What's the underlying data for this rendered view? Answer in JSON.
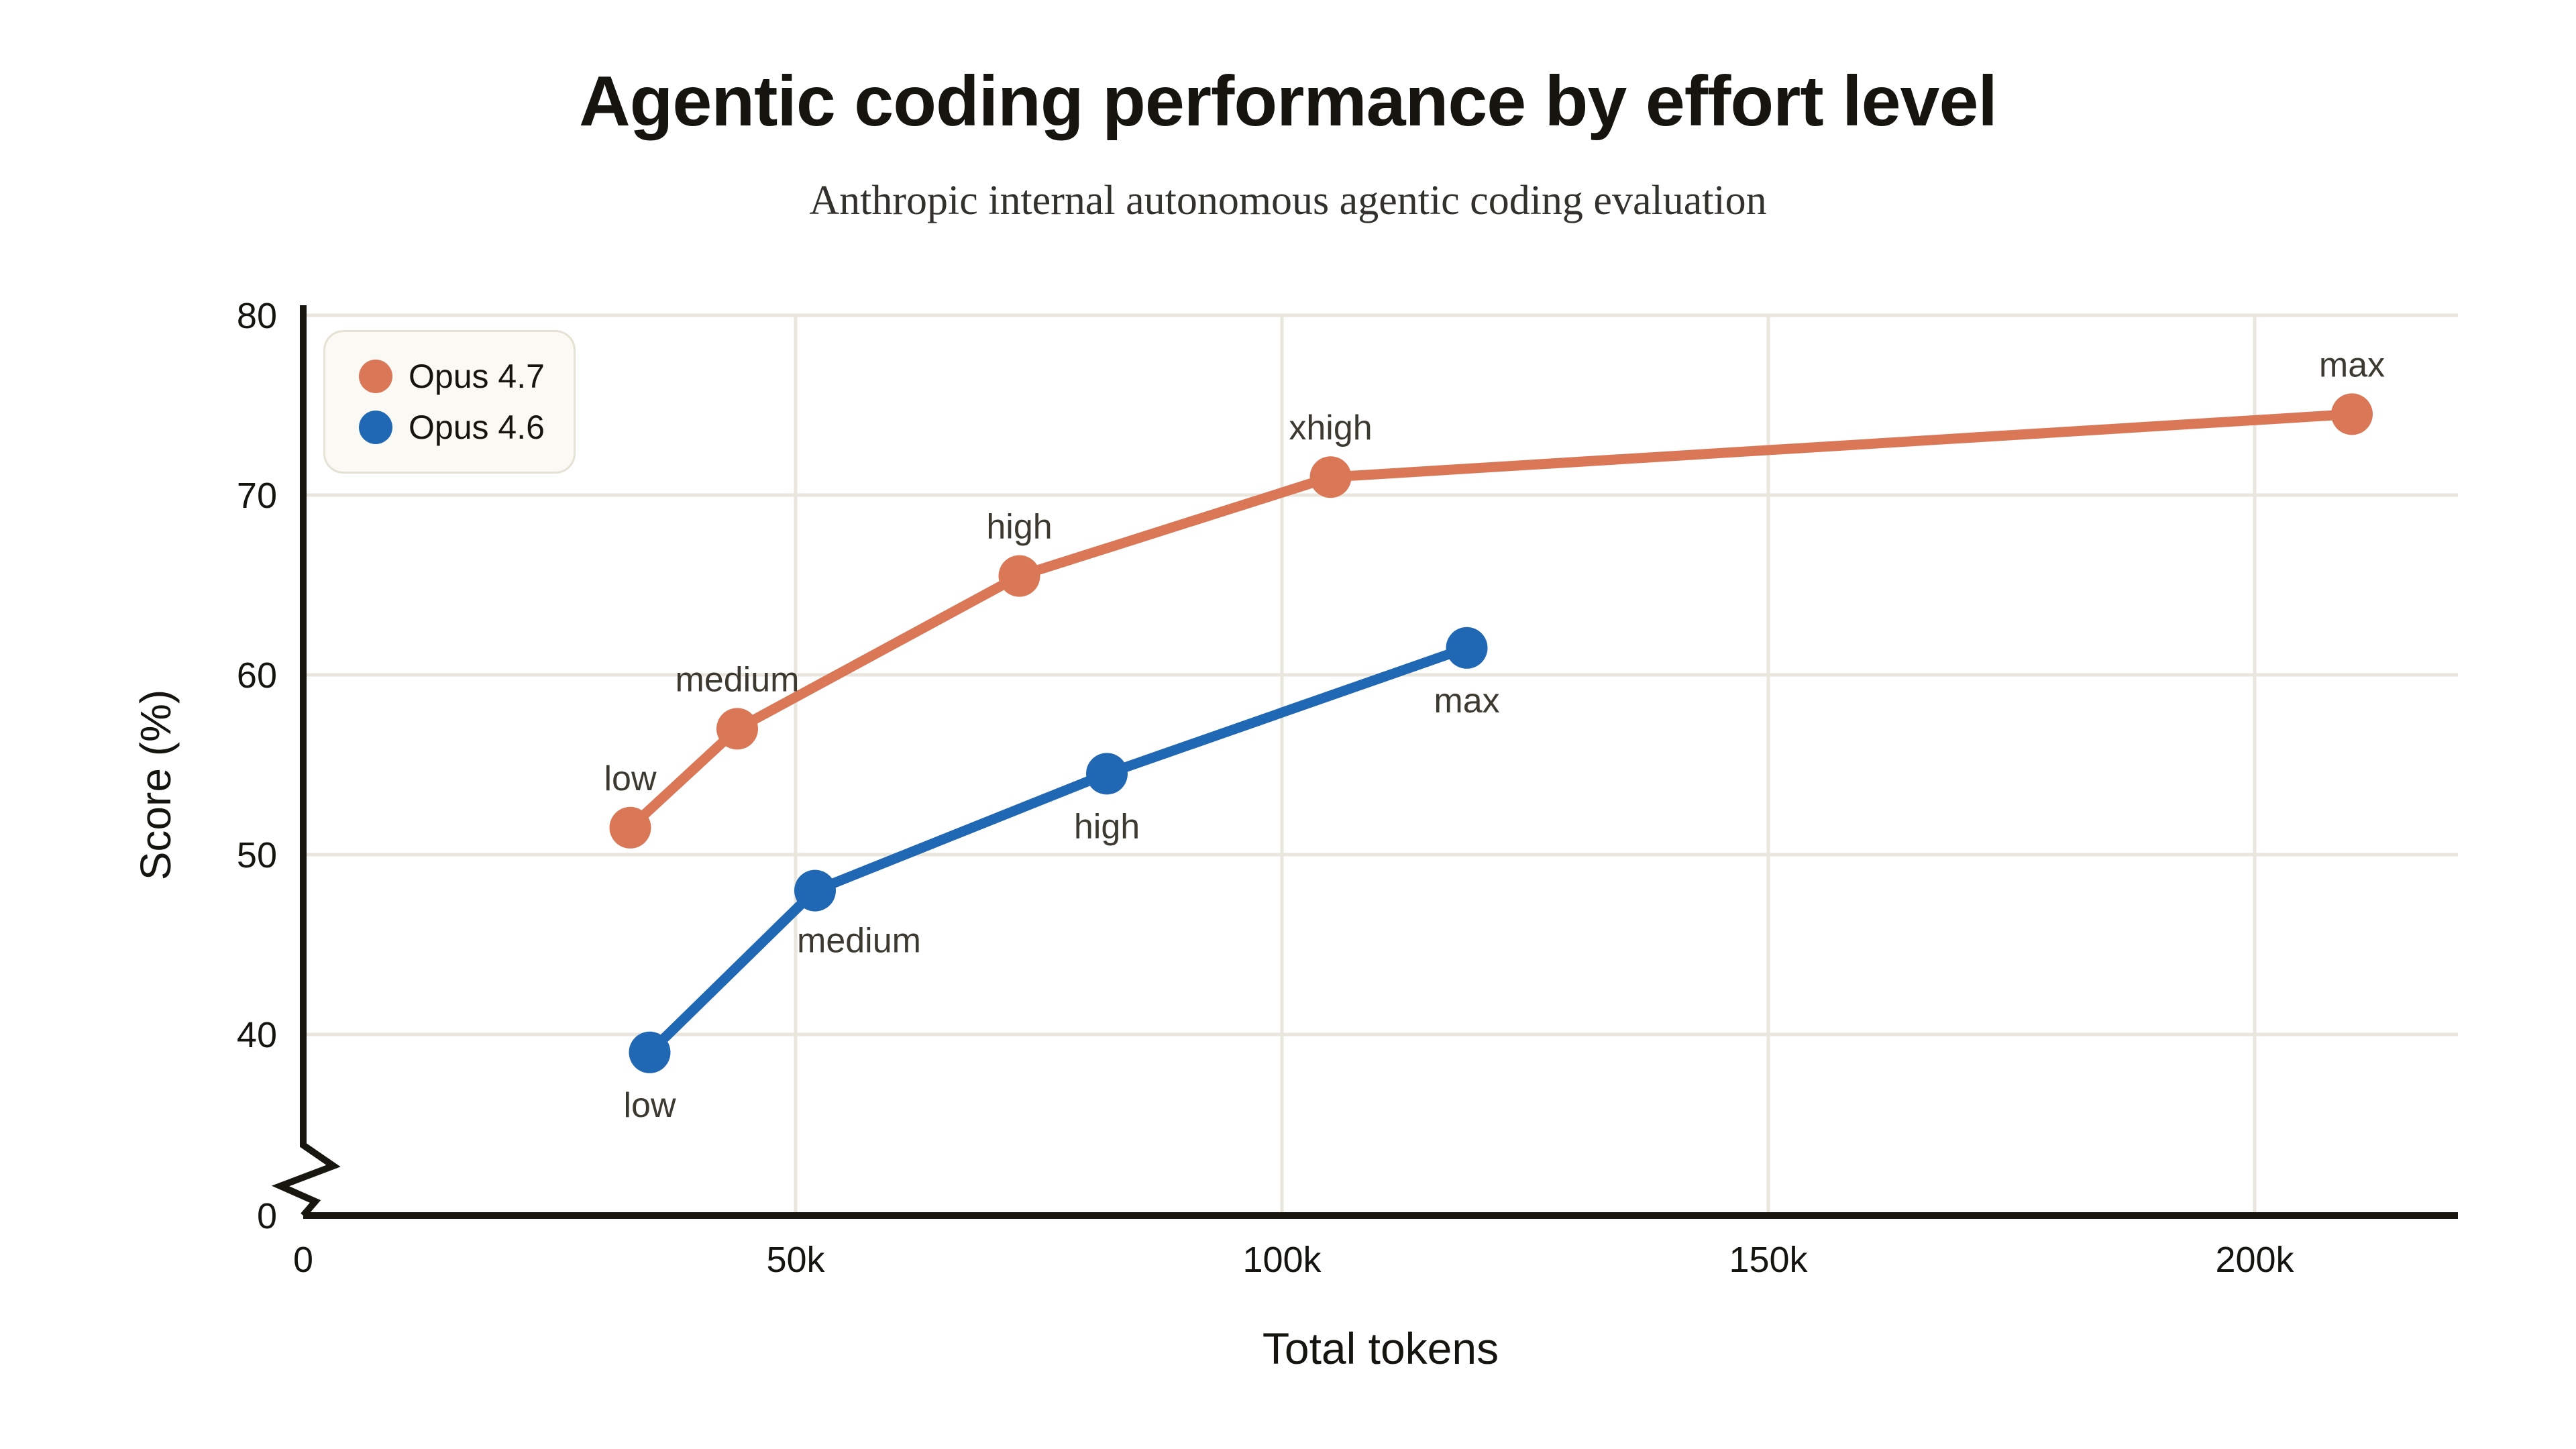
{
  "chart_data": {
    "type": "line",
    "title": "Agentic coding performance by effort level",
    "subtitle": "Anthropic internal autonomous agentic coding evaluation",
    "xlabel": "Total tokens",
    "ylabel": "Score (%)",
    "x_axis": {
      "tick_values_thousands": [
        0,
        50,
        100,
        150,
        200
      ],
      "tick_labels": [
        "0",
        "50k",
        "100k",
        "150k",
        "200k"
      ],
      "range_thousands": [
        0,
        221
      ],
      "grid_values_thousands": [
        50,
        100,
        150,
        200
      ]
    },
    "y_axis": {
      "tick_values": [
        80,
        70,
        60,
        50,
        40,
        0
      ],
      "tick_labels": [
        "80",
        "70",
        "60",
        "50",
        "40",
        "0"
      ],
      "grid_values": [
        40,
        50,
        60,
        70,
        80
      ],
      "axis_break_between": [
        0,
        40
      ]
    },
    "grid": true,
    "legend_position": "top-left",
    "series": [
      {
        "name": "Opus 4.7",
        "color": "#D97757",
        "points": [
          {
            "x_thousands": 33,
            "y": 51.5,
            "label": "low",
            "label_side": "above"
          },
          {
            "x_thousands": 44,
            "y": 57,
            "label": "medium",
            "label_side": "above"
          },
          {
            "x_thousands": 73,
            "y": 65.5,
            "label": "high",
            "label_side": "above"
          },
          {
            "x_thousands": 105,
            "y": 71,
            "label": "xhigh",
            "label_side": "above"
          },
          {
            "x_thousands": 210,
            "y": 74.5,
            "label": "max",
            "label_side": "above"
          }
        ]
      },
      {
        "name": "Opus 4.6",
        "color": "#2168B4",
        "points": [
          {
            "x_thousands": 35,
            "y": 39,
            "label": "low",
            "label_side": "below"
          },
          {
            "x_thousands": 52,
            "y": 48,
            "label": "medium",
            "label_side": "below-right"
          },
          {
            "x_thousands": 82,
            "y": 54.5,
            "label": "high",
            "label_side": "below"
          },
          {
            "x_thousands": 119,
            "y": 61.5,
            "label": "max",
            "label_side": "below"
          }
        ]
      }
    ],
    "colors": {
      "grid": "#E9E6DD",
      "axis": "#17160F",
      "tick_text": "#15140F",
      "annotation_text": "#3C3930",
      "legend_bg": "#FAF9F3",
      "legend_border": "#E5E1D5",
      "background": "#FFFFFF"
    }
  }
}
